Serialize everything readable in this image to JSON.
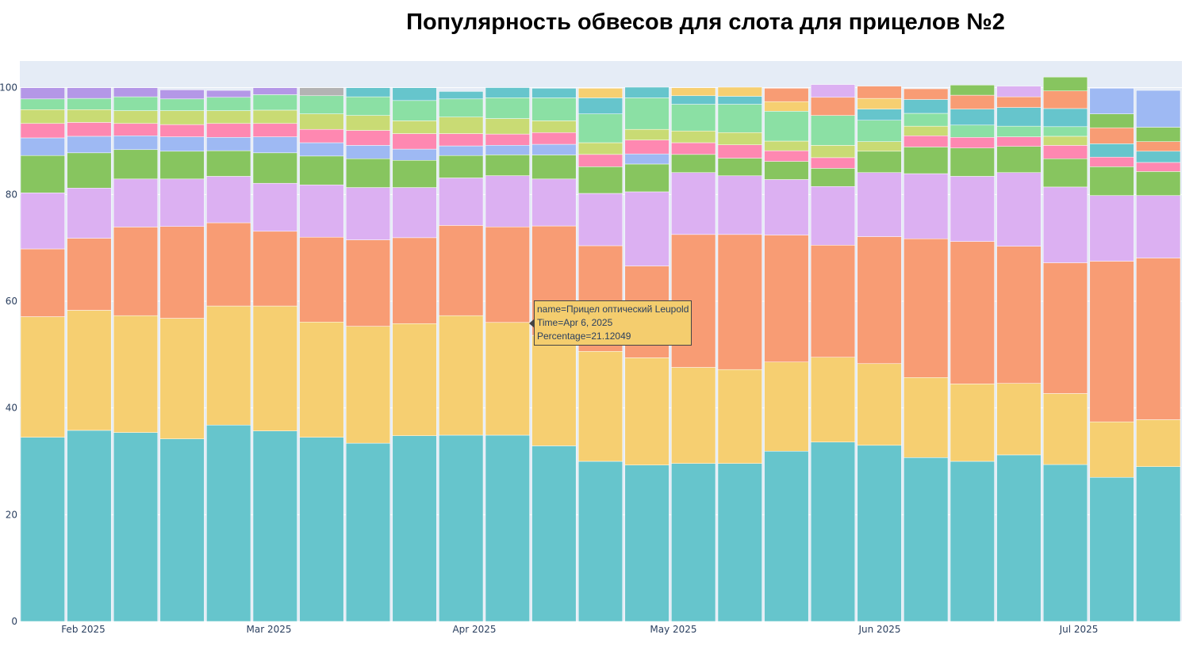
{
  "chart_data": {
    "type": "bar",
    "stacked": true,
    "title": "Популярность обвесов для слота для прицелов №2",
    "xlabel": "",
    "ylabel": "",
    "ylim": [
      0,
      105
    ],
    "yticks": [
      0,
      20,
      40,
      60,
      80,
      100
    ],
    "x_ticks": [
      "Feb 2025",
      "Mar 2025",
      "Apr 2025",
      "May 2025",
      "Jun 2025",
      "Jul 2025"
    ],
    "categories": [
      "Jan 26, 2025",
      "Feb 2, 2025",
      "Feb 9, 2025",
      "Feb 16, 2025",
      "Feb 23, 2025",
      "Mar 2, 2025",
      "Mar 9, 2025",
      "Mar 16, 2025",
      "Mar 23, 2025",
      "Mar 30, 2025",
      "Apr 6, 2025",
      "Apr 13, 2025",
      "Apr 20, 2025",
      "Apr 27, 2025",
      "May 4, 2025",
      "May 11, 2025",
      "May 18, 2025",
      "May 25, 2025",
      "Jun 1, 2025",
      "Jun 8, 2025",
      "Jun 15, 2025",
      "Jun 22, 2025",
      "Jun 29, 2025",
      "Jul 6, 2025",
      "Jul 13, 2025"
    ],
    "series": [
      {
        "color": "#66c5cc",
        "values": [
          34.5,
          35.8,
          35.4,
          34.2,
          36.8,
          35.7,
          34.5,
          33.4,
          34.8,
          34.9,
          34.9,
          32.9,
          30.0,
          29.3,
          29.6,
          29.6,
          31.9,
          33.6,
          33.0,
          30.7,
          30.0,
          31.2,
          29.4,
          27.0,
          29.0
        ]
      },
      {
        "color": "#f6cf71",
        "values": [
          22.6,
          22.5,
          21.9,
          22.6,
          22.3,
          23.4,
          21.6,
          21.9,
          21.0,
          22.4,
          21.12049,
          20.7,
          20.6,
          20.1,
          18.0,
          17.6,
          16.7,
          15.9,
          15.3,
          15.0,
          14.5,
          13.4,
          13.3,
          10.4,
          8.8
        ]
      },
      {
        "color": "#f89c74",
        "values": [
          12.7,
          13.5,
          16.6,
          17.2,
          15.6,
          14.0,
          15.9,
          16.2,
          16.1,
          16.9,
          17.9,
          20.5,
          19.8,
          17.2,
          24.9,
          25.3,
          23.8,
          21.0,
          23.8,
          26.0,
          26.7,
          25.7,
          24.5,
          30.1,
          30.3
        ]
      },
      {
        "color": "#dcb0f2",
        "values": [
          10.5,
          9.4,
          9.0,
          8.9,
          8.7,
          9.0,
          9.8,
          9.8,
          9.4,
          8.9,
          9.6,
          8.8,
          9.8,
          13.9,
          11.6,
          11.0,
          10.4,
          11.0,
          12.0,
          12.2,
          12.2,
          13.8,
          14.2,
          12.3,
          11.7
        ]
      },
      {
        "color": "#87c55f",
        "values": [
          7.0,
          6.6,
          5.5,
          5.2,
          4.8,
          5.7,
          5.4,
          5.4,
          5.1,
          4.2,
          3.9,
          4.5,
          5.0,
          5.2,
          3.4,
          3.3,
          3.4,
          3.4,
          4.0,
          5.0,
          5.3,
          4.9,
          5.3,
          5.4,
          4.5
        ]
      },
      {
        "color": "#9eb9f3",
        "values": [
          3.3,
          3.1,
          2.6,
          2.7,
          2.5,
          3.0,
          2.5,
          2.5,
          2.1,
          1.8,
          1.8,
          2.0,
          0,
          1.9,
          0,
          0,
          0,
          0,
          0,
          0,
          0,
          0,
          0,
          0,
          0
        ]
      },
      {
        "color": "#fe88b1",
        "values": [
          2.7,
          2.6,
          2.3,
          2.3,
          2.6,
          2.5,
          2.5,
          2.8,
          2.9,
          2.3,
          2.1,
          2.2,
          2.3,
          2.6,
          2.2,
          2.5,
          2.0,
          2.0,
          0,
          2.1,
          2.0,
          1.8,
          2.5,
          1.8,
          1.7
        ]
      },
      {
        "color": "#c9db74",
        "values": [
          2.6,
          2.4,
          2.4,
          2.6,
          2.4,
          2.5,
          2.9,
          2.8,
          2.4,
          3.1,
          2.9,
          2.2,
          2.2,
          2.0,
          2.2,
          2.3,
          1.8,
          2.3,
          1.8,
          1.8,
          0,
          0,
          1.7,
          0,
          0
        ]
      },
      {
        "color": "#8be0a4",
        "values": [
          2.0,
          2.1,
          2.6,
          2.2,
          2.5,
          2.9,
          3.4,
          3.5,
          3.8,
          3.4,
          3.9,
          4.3,
          5.4,
          5.9,
          5.0,
          5.3,
          5.6,
          5.6,
          4.0,
          2.4,
          2.3,
          2.0,
          1.8,
          0,
          0
        ]
      },
      {
        "color": "#66c5cc",
        "values": [
          0,
          0,
          0,
          0,
          0,
          0,
          0,
          1.7,
          2.4,
          1.4,
          1.9,
          1.8,
          3.0,
          2.0,
          1.6,
          1.5,
          0,
          0,
          2.1,
          2.6,
          3.0,
          3.5,
          3.4,
          2.5,
          2.1
        ]
      },
      {
        "color": "#f6cf71",
        "values": [
          0,
          0,
          0,
          0,
          0,
          0,
          0,
          0,
          0,
          0,
          0,
          0,
          1.8,
          0,
          1.5,
          1.7,
          1.8,
          0,
          2.0,
          0,
          0,
          0,
          0,
          0,
          0
        ]
      },
      {
        "color": "#f89c74",
        "values": [
          0,
          0,
          0,
          0,
          0,
          0,
          0,
          0,
          0,
          0,
          0,
          0,
          0,
          0,
          0,
          0,
          2.5,
          3.4,
          2.3,
          2.0,
          2.6,
          2.0,
          3.3,
          3.0,
          1.8
        ]
      },
      {
        "color": "#dcb0f2",
        "values": [
          0,
          0,
          0,
          0,
          0,
          0,
          0,
          0,
          0,
          0,
          0,
          0,
          0,
          0,
          0,
          0,
          0,
          2.4,
          0,
          0,
          0,
          2.0,
          0,
          0,
          0
        ]
      },
      {
        "color": "#87c55f",
        "values": [
          0,
          0,
          0,
          0,
          0,
          0,
          0,
          0,
          0,
          0,
          0,
          0,
          0,
          0,
          0,
          0,
          0,
          0,
          0,
          0,
          1.9,
          0,
          2.6,
          2.6,
          2.7
        ]
      },
      {
        "color": "#9eb9f3",
        "values": [
          0,
          0,
          0,
          0,
          0,
          0,
          0,
          0,
          0,
          0,
          0,
          0,
          0,
          0,
          0,
          0,
          0,
          0,
          0,
          0,
          0,
          0,
          0,
          4.8,
          6.9
        ]
      },
      {
        "color": "#b497e7",
        "values": [
          2.1,
          2.0,
          1.7,
          1.7,
          1.3,
          1.3,
          0,
          0,
          0,
          0,
          0,
          0,
          0,
          0,
          0,
          0,
          0,
          0,
          0,
          0,
          0,
          0,
          0,
          0,
          0
        ]
      },
      {
        "color": "#b3b3b3",
        "values": [
          0,
          0,
          0,
          0,
          0,
          0,
          1.5,
          0,
          0,
          0,
          0,
          0,
          0,
          0,
          0,
          0,
          0,
          0,
          0,
          0,
          0,
          0,
          0,
          0,
          0
        ]
      }
    ],
    "grid": true,
    "legend": "none"
  },
  "tooltip": {
    "line1": "name=Прицел оптический Leupold",
    "line2": "Time=Apr 6, 2025",
    "line3": "Percentage=21.12049"
  }
}
